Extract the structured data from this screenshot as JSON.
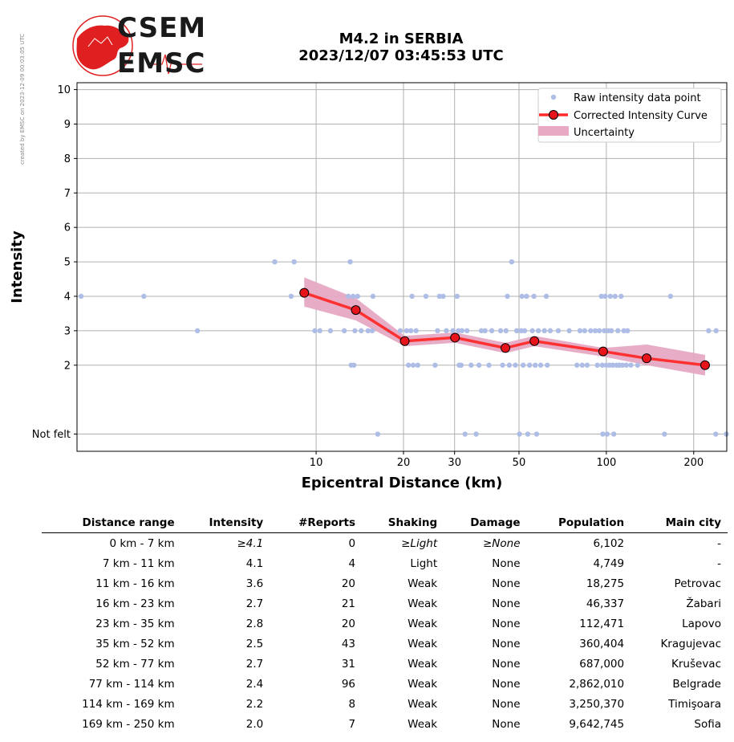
{
  "credit": "created by EMSC on 2023-12-09 00:03:05 UTC",
  "logo": {
    "top_word": "CSEM",
    "bottom_word": "EMSC"
  },
  "title": {
    "line1": "M4.2 in SERBIA",
    "line2": "2023/12/07 03:45:53 UTC"
  },
  "chart_data": {
    "type": "scatter",
    "xlabel": "Epicentral Distance (km)",
    "ylabel": "Intensity",
    "x_scale": "log",
    "xlim": [
      1.5,
      260
    ],
    "ylim": [
      -0.5,
      10.2
    ],
    "x_ticks": [
      10,
      20,
      30,
      50,
      100,
      200
    ],
    "y_ticks": [
      {
        "value": 0,
        "label": "Not felt"
      },
      {
        "value": 2,
        "label": "2"
      },
      {
        "value": 3,
        "label": "3"
      },
      {
        "value": 4,
        "label": "4"
      },
      {
        "value": 5,
        "label": "5"
      },
      {
        "value": 6,
        "label": "6"
      },
      {
        "value": 7,
        "label": "7"
      },
      {
        "value": 8,
        "label": "8"
      },
      {
        "value": 9,
        "label": "9"
      },
      {
        "value": 10,
        "label": "10"
      }
    ],
    "grid": true,
    "legend_position": "top-right",
    "series": [
      {
        "name": "Raw intensity data point",
        "type": "scatter",
        "color": "#aebde6",
        "points": [
          [
            1.55,
            4
          ],
          [
            2.55,
            4
          ],
          [
            3.9,
            3
          ],
          [
            7.2,
            5
          ],
          [
            8.4,
            5
          ],
          [
            8.2,
            4
          ],
          [
            9.9,
            3
          ],
          [
            10.3,
            3
          ],
          [
            11.2,
            3
          ],
          [
            12.5,
            3
          ],
          [
            12.9,
            4
          ],
          [
            13.1,
            5
          ],
          [
            13.4,
            4
          ],
          [
            13.6,
            3
          ],
          [
            13.9,
            4
          ],
          [
            13.2,
            2
          ],
          [
            13.5,
            2
          ],
          [
            14.3,
            3
          ],
          [
            15.1,
            3
          ],
          [
            15.6,
            3
          ],
          [
            15.7,
            4
          ],
          [
            16.3,
            0
          ],
          [
            17.8,
            3
          ],
          [
            19.5,
            3
          ],
          [
            20.5,
            3
          ],
          [
            20.8,
            2
          ],
          [
            21.2,
            3
          ],
          [
            21.4,
            4
          ],
          [
            21.6,
            2
          ],
          [
            22.1,
            3
          ],
          [
            22.4,
            2
          ],
          [
            23.9,
            4
          ],
          [
            25.7,
            2
          ],
          [
            26.2,
            3
          ],
          [
            26.6,
            4
          ],
          [
            27.4,
            4
          ],
          [
            28.1,
            3
          ],
          [
            29.6,
            3
          ],
          [
            30.6,
            4
          ],
          [
            30.9,
            3
          ],
          [
            31.1,
            2
          ],
          [
            31.6,
            2
          ],
          [
            31.8,
            3
          ],
          [
            32.6,
            0
          ],
          [
            33.1,
            3
          ],
          [
            34.2,
            2
          ],
          [
            35.6,
            0
          ],
          [
            36.4,
            2
          ],
          [
            37.1,
            3
          ],
          [
            38.2,
            3
          ],
          [
            39.4,
            2
          ],
          [
            40.3,
            3
          ],
          [
            43.2,
            3
          ],
          [
            43.9,
            2
          ],
          [
            45.1,
            3
          ],
          [
            45.6,
            4
          ],
          [
            46.3,
            2
          ],
          [
            47.2,
            5
          ],
          [
            48.6,
            2
          ],
          [
            49.1,
            3
          ],
          [
            50.2,
            0
          ],
          [
            50.9,
            3
          ],
          [
            51.2,
            4
          ],
          [
            51.7,
            2
          ],
          [
            52.3,
            3
          ],
          [
            53.1,
            4
          ],
          [
            53.6,
            0
          ],
          [
            54.4,
            2
          ],
          [
            55.6,
            3
          ],
          [
            56.3,
            4
          ],
          [
            56.9,
            2
          ],
          [
            57.5,
            0
          ],
          [
            58.3,
            3
          ],
          [
            59.4,
            2
          ],
          [
            61.2,
            3
          ],
          [
            62.1,
            4
          ],
          [
            62.6,
            2
          ],
          [
            64.1,
            3
          ],
          [
            68.3,
            3
          ],
          [
            74.5,
            3
          ],
          [
            79.2,
            2
          ],
          [
            81.1,
            3
          ],
          [
            82.6,
            2
          ],
          [
            84.2,
            3
          ],
          [
            85.9,
            2
          ],
          [
            88.3,
            3
          ],
          [
            91.6,
            3
          ],
          [
            93.1,
            2
          ],
          [
            94.6,
            3
          ],
          [
            96.1,
            4
          ],
          [
            96.8,
            2
          ],
          [
            97.2,
            0
          ],
          [
            98.4,
            3
          ],
          [
            99.1,
            4
          ],
          [
            99.9,
            2
          ],
          [
            100.6,
            0
          ],
          [
            101.5,
            3
          ],
          [
            102.6,
            2
          ],
          [
            103.2,
            4
          ],
          [
            104.1,
            3
          ],
          [
            105.3,
            2
          ],
          [
            106.1,
            0
          ],
          [
            107.2,
            4
          ],
          [
            108.5,
            2
          ],
          [
            109.6,
            3
          ],
          [
            110.8,
            2
          ],
          [
            112.4,
            4
          ],
          [
            113.6,
            2
          ],
          [
            114.9,
            3
          ],
          [
            117.1,
            2
          ],
          [
            118.3,
            3
          ],
          [
            121.5,
            2
          ],
          [
            128.1,
            2
          ],
          [
            158.6,
            0
          ],
          [
            166.3,
            4
          ],
          [
            225.1,
            3
          ],
          [
            238.2,
            0
          ],
          [
            238.9,
            3
          ],
          [
            259.1,
            0
          ]
        ]
      },
      {
        "name": "Corrected Intensity Curve",
        "type": "line",
        "color": "#ff2a2a",
        "marker_fill": "#e8141c",
        "marker_edge": "#000000",
        "x": [
          9.1,
          13.7,
          20.2,
          30.1,
          44.9,
          56.5,
          97.5,
          137.7,
          218.9
        ],
        "values": [
          4.1,
          3.6,
          2.7,
          2.8,
          2.5,
          2.7,
          2.4,
          2.2,
          2.0
        ]
      },
      {
        "name": "Uncertainty",
        "type": "band",
        "color": "#e7a9c3",
        "x": [
          9.1,
          13.7,
          20.2,
          30.1,
          44.9,
          56.5,
          97.5,
          137.7,
          218.9
        ],
        "upper": [
          4.55,
          3.95,
          2.85,
          2.95,
          2.65,
          2.85,
          2.5,
          2.6,
          2.3
        ],
        "lower": [
          3.7,
          3.3,
          2.55,
          2.65,
          2.35,
          2.55,
          2.25,
          2.0,
          1.7
        ]
      }
    ]
  },
  "table": {
    "headers": [
      "Distance range",
      "Intensity",
      "#Reports",
      "Shaking",
      "Damage",
      "Population",
      "Main city"
    ],
    "rows": [
      {
        "range": "0 km -    7 km",
        "intensity": "≥4.1",
        "reports": "0",
        "shaking": "≥Light",
        "damage": "≥None",
        "population": "6,102",
        "city": "-"
      },
      {
        "range": "7 km -   11 km",
        "intensity": "4.1",
        "reports": "4",
        "shaking": "Light",
        "damage": "None",
        "population": "4,749",
        "city": "-"
      },
      {
        "range": "11 km -   16 km",
        "intensity": "3.6",
        "reports": "20",
        "shaking": "Weak",
        "damage": "None",
        "population": "18,275",
        "city": "Petrovac"
      },
      {
        "range": "16 km -   23 km",
        "intensity": "2.7",
        "reports": "21",
        "shaking": "Weak",
        "damage": "None",
        "population": "46,337",
        "city": "Žabari"
      },
      {
        "range": "23 km -   35 km",
        "intensity": "2.8",
        "reports": "20",
        "shaking": "Weak",
        "damage": "None",
        "population": "112,471",
        "city": "Lapovo"
      },
      {
        "range": "35 km -   52 km",
        "intensity": "2.5",
        "reports": "43",
        "shaking": "Weak",
        "damage": "None",
        "population": "360,404",
        "city": "Kragujevac"
      },
      {
        "range": "52 km -   77 km",
        "intensity": "2.7",
        "reports": "31",
        "shaking": "Weak",
        "damage": "None",
        "population": "687,000",
        "city": "Kruševac"
      },
      {
        "range": "77 km -  114 km",
        "intensity": "2.4",
        "reports": "96",
        "shaking": "Weak",
        "damage": "None",
        "population": "2,862,010",
        "city": "Belgrade"
      },
      {
        "range": "114 km -  169 km",
        "intensity": "2.2",
        "reports": "8",
        "shaking": "Weak",
        "damage": "None",
        "population": "3,250,370",
        "city": "Timişoara"
      },
      {
        "range": "169 km -  250 km",
        "intensity": "2.0",
        "reports": "7",
        "shaking": "Weak",
        "damage": "None",
        "population": "9,642,745",
        "city": "Sofia"
      }
    ]
  }
}
